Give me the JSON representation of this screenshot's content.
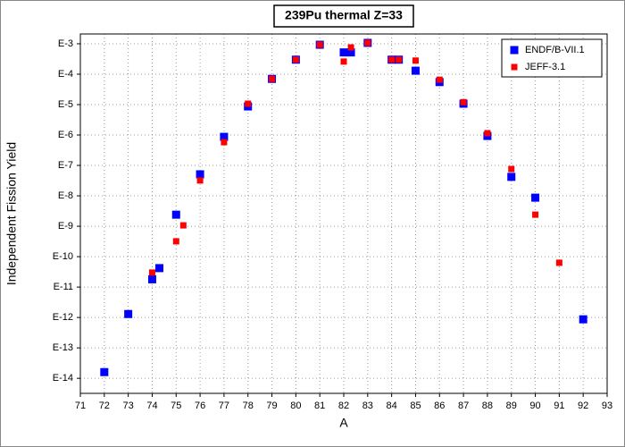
{
  "chart_data": {
    "type": "scatter",
    "title": "239Pu thermal Z=33",
    "x_label": "A",
    "y_label": "Independent Fission Yield",
    "xlim": [
      71,
      93
    ],
    "xticks": [
      71,
      72,
      73,
      74,
      75,
      76,
      77,
      78,
      79,
      80,
      81,
      82,
      83,
      84,
      85,
      86,
      87,
      88,
      89,
      90,
      91,
      92,
      93
    ],
    "ylim": [
      3.2e-15,
      0.0021
    ],
    "y_scale": "log",
    "yticks": [
      {
        "value": 0.001,
        "label": "E-3"
      },
      {
        "value": 0.0001,
        "label": "E-4"
      },
      {
        "value": 1e-05,
        "label": "E-5"
      },
      {
        "value": 1e-06,
        "label": "E-6"
      },
      {
        "value": 1e-07,
        "label": "E-7"
      },
      {
        "value": 1e-08,
        "label": "E-8"
      },
      {
        "value": 1e-09,
        "label": "E-9"
      },
      {
        "value": 1e-10,
        "label": "E-10"
      },
      {
        "value": 1e-11,
        "label": "E-11"
      },
      {
        "value": 1e-12,
        "label": "E-12"
      },
      {
        "value": 1e-13,
        "label": "E-13"
      },
      {
        "value": 1e-14,
        "label": "E-14"
      }
    ],
    "grid": true,
    "legend": "upper right",
    "series": [
      {
        "name": "ENDF/B-VII.1",
        "color": "#0000ff",
        "x": [
          72,
          73,
          74,
          74.3,
          75,
          76,
          77,
          78,
          79,
          80,
          81,
          82,
          82.3,
          83,
          84,
          84.3,
          85,
          86,
          87,
          88,
          89,
          90,
          92
        ],
        "values": [
          1.6e-14,
          1.3e-12,
          1.8e-11,
          4.2e-11,
          2.4e-09,
          5.1e-08,
          8.7e-07,
          8.7e-06,
          7e-05,
          0.0003,
          0.00093,
          0.00052,
          0.00052,
          0.00107,
          0.0003,
          0.0003,
          0.00013,
          5.5e-05,
          1.07e-05,
          9.3e-07,
          4.2e-08,
          8.7e-09,
          8.7e-13
        ]
      },
      {
        "name": "JEFF-3.1",
        "color": "#ff0000",
        "x": [
          74,
          75,
          75.3,
          76,
          77,
          78,
          79,
          80,
          81,
          82,
          82.3,
          83,
          84,
          84.3,
          85,
          86,
          87,
          88,
          89,
          90,
          91
        ],
        "values": [
          3e-11,
          3.2e-10,
          1.07e-09,
          3.2e-08,
          5.8e-07,
          1.07e-05,
          7e-05,
          0.0003,
          0.00093,
          0.00026,
          0.00076,
          0.00107,
          0.0003,
          0.0003,
          0.00028,
          6.6e-05,
          1.2e-05,
          1.15e-06,
          7.6e-08,
          2.4e-09,
          6.3e-11
        ]
      }
    ]
  }
}
